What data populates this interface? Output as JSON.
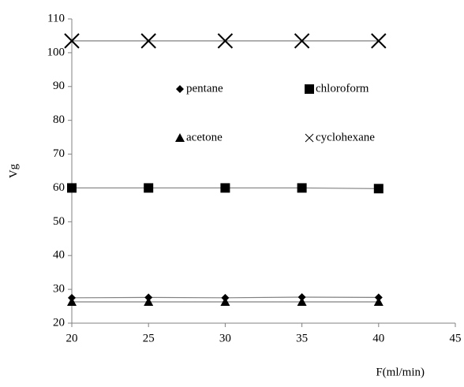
{
  "chart_data": {
    "type": "line",
    "x_label": "F(ml/min)",
    "y_label": "Vg",
    "x": [
      20,
      25,
      30,
      35,
      40
    ],
    "series": [
      {
        "name": "pentane",
        "color": "#000000",
        "marker": "diamond",
        "values": [
          27.5,
          27.6,
          27.5,
          27.7,
          27.6
        ]
      },
      {
        "name": "chloroform",
        "color": "#000000",
        "marker": "square",
        "values": [
          60,
          60,
          60,
          60,
          59.8
        ]
      },
      {
        "name": "acetone",
        "color": "#000000",
        "marker": "triangle",
        "values": [
          26.3,
          26.3,
          26.3,
          26.3,
          26.3
        ]
      },
      {
        "name": "cyclohexane",
        "color": "#000000",
        "marker": "x",
        "values": [
          103.5,
          103.5,
          103.5,
          103.5,
          103.5
        ]
      }
    ],
    "xlim": [
      20,
      45
    ],
    "xticks": [
      20,
      25,
      30,
      35,
      40,
      45
    ],
    "ylim": [
      20,
      110
    ],
    "yticks": [
      20,
      30,
      40,
      50,
      60,
      70,
      80,
      90,
      100,
      110
    ],
    "grid": false,
    "line_color": "#808080"
  }
}
